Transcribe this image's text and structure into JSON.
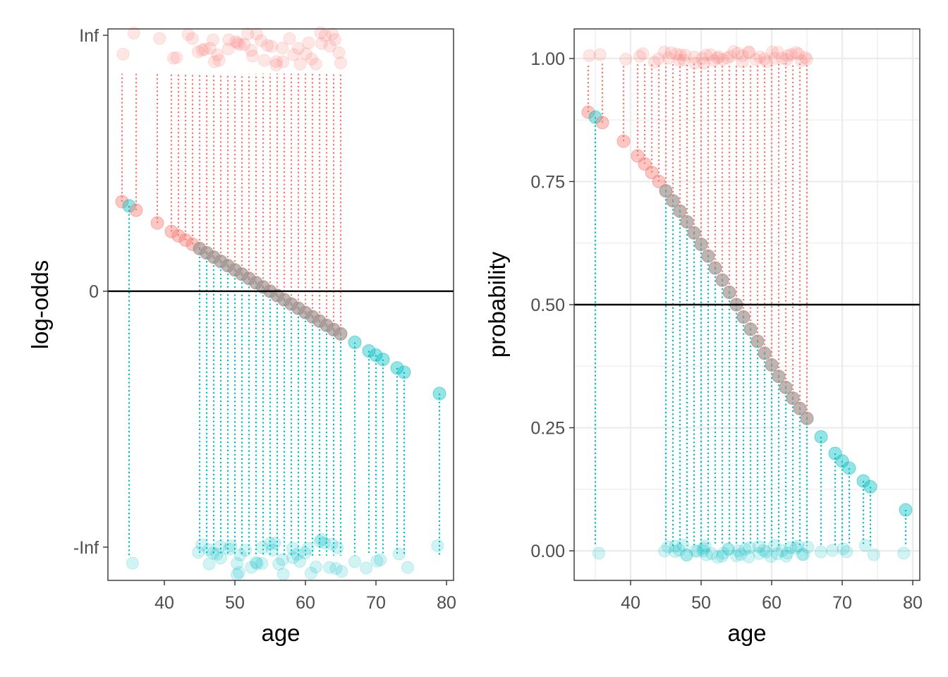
{
  "chart_data": [
    {
      "type": "scatter",
      "panel": "left",
      "xlabel": "age",
      "ylabel": "log-odds",
      "xlim": [
        32,
        81
      ],
      "ylim": [
        "-Inf",
        "Inf"
      ],
      "x_ticks": [
        40,
        50,
        60,
        70,
        80
      ],
      "y_ticks": [
        {
          "label": "Inf",
          "value": 6
        },
        {
          "label": "0",
          "value": 0
        },
        {
          "label": "-Inf",
          "value": -6
        }
      ],
      "grid": false,
      "reference_line": 0,
      "fitted_line": {
        "intercept": 5.5,
        "slope": -0.1
      },
      "colors": {
        "outcome_1": "#F8766D",
        "outcome_0": "#00BFC4",
        "reference_line": "#000000"
      },
      "ages": [
        34,
        35,
        36,
        39,
        41,
        42,
        43,
        44,
        45,
        46,
        47,
        48,
        49,
        50,
        51,
        52,
        53,
        54,
        55,
        56,
        57,
        58,
        59,
        60,
        61,
        62,
        63,
        64,
        65,
        67,
        69,
        70,
        71,
        73,
        74,
        79
      ],
      "outcome_at_age": [
        "1",
        "0",
        "1",
        "1",
        "1",
        "1",
        "1",
        "1",
        "mixed",
        "mixed",
        "mixed",
        "mixed",
        "mixed",
        "mixed",
        "mixed",
        "mixed",
        "mixed",
        "mixed",
        "mixed",
        "mixed",
        "mixed",
        "mixed",
        "mixed",
        "mixed",
        "mixed",
        "mixed",
        "mixed",
        "mixed",
        "mixed",
        "0",
        "0",
        "0",
        "0",
        "0",
        "0",
        "0"
      ]
    },
    {
      "type": "scatter",
      "panel": "right",
      "xlabel": "age",
      "ylabel": "probability",
      "xlim": [
        32,
        81
      ],
      "ylim": [
        -0.06,
        1.06
      ],
      "x_ticks": [
        40,
        50,
        60,
        70,
        80
      ],
      "y_ticks": [
        {
          "label": "0.00",
          "value": 0
        },
        {
          "label": "0.25",
          "value": 0.25
        },
        {
          "label": "0.50",
          "value": 0.5
        },
        {
          "label": "0.75",
          "value": 0.75
        },
        {
          "label": "1.00",
          "value": 1
        }
      ],
      "grid": true,
      "reference_line": 0.5,
      "fitted_curve": "logistic(5.5 - 0.1 * age)",
      "colors": {
        "outcome_1": "#F8766D",
        "outcome_0": "#00BFC4",
        "reference_line": "#000000"
      },
      "ages": [
        34,
        35,
        36,
        39,
        41,
        42,
        43,
        44,
        45,
        46,
        47,
        48,
        49,
        50,
        51,
        52,
        53,
        54,
        55,
        56,
        57,
        58,
        59,
        60,
        61,
        62,
        63,
        64,
        65,
        67,
        69,
        70,
        71,
        73,
        74,
        79
      ],
      "outcome_at_age": [
        "1",
        "0",
        "1",
        "1",
        "1",
        "1",
        "1",
        "1",
        "mixed",
        "mixed",
        "mixed",
        "mixed",
        "mixed",
        "mixed",
        "mixed",
        "mixed",
        "mixed",
        "mixed",
        "mixed",
        "mixed",
        "mixed",
        "mixed",
        "mixed",
        "mixed",
        "mixed",
        "mixed",
        "mixed",
        "mixed",
        "mixed",
        "0",
        "0",
        "0",
        "0",
        "0",
        "0",
        "0"
      ]
    }
  ]
}
